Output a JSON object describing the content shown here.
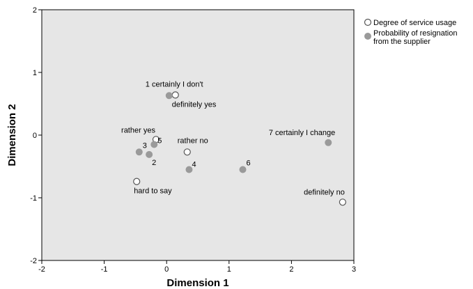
{
  "chart_data": {
    "type": "scatter",
    "xlabel": "Dimension 1",
    "ylabel": "Dimension 2",
    "xlim": [
      -2,
      3
    ],
    "ylim": [
      -2,
      2
    ],
    "x_ticks": [
      -2,
      -1,
      0,
      1,
      2,
      3
    ],
    "y_ticks": [
      -2,
      -1,
      0,
      1,
      2
    ],
    "legend_position": "top-right, outside plot",
    "plot_background": "#e6e6e6",
    "series": [
      {
        "name": "Degree of service usage",
        "marker": "hollow-circle",
        "color": "#555555",
        "points": [
          {
            "label": "definitely yes",
            "x": 0.14,
            "y": 0.64
          },
          {
            "label": "rather yes",
            "x": -0.17,
            "y": -0.07
          },
          {
            "label": "rather no",
            "x": 0.33,
            "y": -0.27
          },
          {
            "label": "hard to say",
            "x": -0.48,
            "y": -0.74
          },
          {
            "label": "definitely no",
            "x": 2.82,
            "y": -1.07
          }
        ]
      },
      {
        "name": "Probability of resignation from the supplier",
        "legend_lines": [
          "Probability of resignation",
          "from the supplier"
        ],
        "marker": "filled-circle",
        "color": "#9a9a9a",
        "points": [
          {
            "label": "1 certainly I don't",
            "x": 0.04,
            "y": 0.63
          },
          {
            "label": "5",
            "x": -0.2,
            "y": -0.15
          },
          {
            "label": "3",
            "x": -0.44,
            "y": -0.27
          },
          {
            "label": "2",
            "x": -0.28,
            "y": -0.31
          },
          {
            "label": "4",
            "x": 0.36,
            "y": -0.55
          },
          {
            "label": "6",
            "x": 1.22,
            "y": -0.55
          },
          {
            "label": "7 certainly I change",
            "x": 2.59,
            "y": -0.12
          }
        ]
      }
    ]
  }
}
